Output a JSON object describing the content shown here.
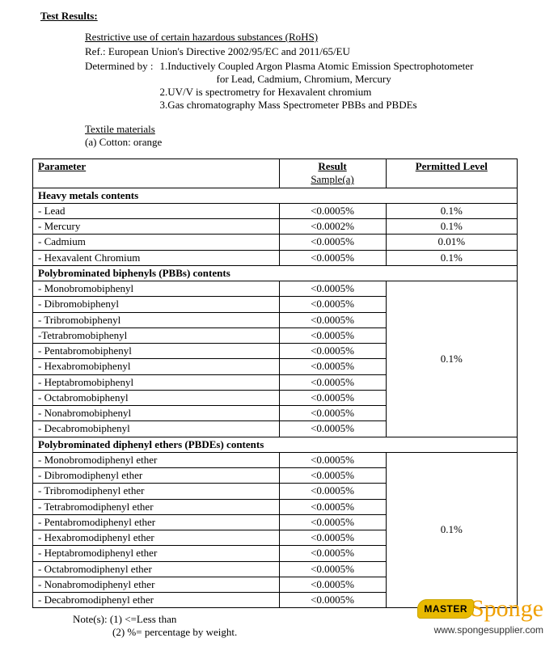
{
  "header": {
    "title": "Test Results:",
    "subtitle": "Restrictive use of certain hazardous substances (RoHS)",
    "ref": "Ref.: European Union's Directive 2002/95/EC and 2011/65/EU",
    "determined_label": "Determined by :",
    "methods": {
      "m1": "1.Inductively Coupled Argon Plasma Atomic Emission Spectrophotometer",
      "m1_sub": "for Lead, Cadmium, Chromium, Mercury",
      "m2": "2.UV/V is spectrometry for Hexavalent chromium",
      "m3": "3.Gas chromatography Mass Spectrometer PBBs and PBDEs"
    },
    "textile": "Textile materials",
    "cotton": "(a)   Cotton: orange"
  },
  "table": {
    "col_parameter": "Parameter",
    "col_result": "Result",
    "col_result_sub": "Sample(a)",
    "col_permitted": "Permitted Level",
    "sections": {
      "heavy": {
        "title": "Heavy metals contents",
        "rows": [
          {
            "p": "- Lead",
            "r": "<0.0005%",
            "l": "0.1%"
          },
          {
            "p": "- Mercury",
            "r": "<0.0002%",
            "l": "0.1%"
          },
          {
            "p": "- Cadmium",
            "r": "<0.0005%",
            "l": "0.01%"
          },
          {
            "p": "- Hexavalent Chromium",
            "r": "<0.0005%",
            "l": "0.1%"
          }
        ]
      },
      "pbb": {
        "title": "Polybrominated biphenyls (PBBs) contents",
        "permitted": "0.1%",
        "rows": [
          {
            "p": "- Monobromobiphenyl",
            "r": "<0.0005%"
          },
          {
            "p": "- Dibromobiphenyl",
            "r": "<0.0005%"
          },
          {
            "p": "- Tribromobiphenyl",
            "r": "<0.0005%"
          },
          {
            "p": "-Tetrabromobiphenyl",
            "r": "<0.0005%"
          },
          {
            "p": "- Pentabromobiphenyl",
            "r": "<0.0005%"
          },
          {
            "p": "- Hexabromobiphenyl",
            "r": "<0.0005%"
          },
          {
            "p": "- Heptabromobiphenyl",
            "r": "<0.0005%"
          },
          {
            "p": "- Octabromobiphenyl",
            "r": "<0.0005%"
          },
          {
            "p": "- Nonabromobiphenyl",
            "r": "<0.0005%"
          },
          {
            "p": "- Decabromobiphenyl",
            "r": "<0.0005%"
          }
        ]
      },
      "pbde": {
        "title": "Polybrominated diphenyl ethers (PBDEs) contents",
        "permitted": "0.1%",
        "rows": [
          {
            "p": "- Monobromodiphenyl ether",
            "r": "<0.0005%"
          },
          {
            "p": "- Dibromodiphenyl ether",
            "r": "<0.0005%"
          },
          {
            "p": "- Tribromodiphenyl ether",
            "r": "<0.0005%"
          },
          {
            "p": "- Tetrabromodiphenyl ether",
            "r": "<0.0005%"
          },
          {
            "p": "- Pentabromodiphenyl ether",
            "r": "<0.0005%"
          },
          {
            "p": "- Hexabromodiphenyl ether",
            "r": "<0.0005%"
          },
          {
            "p": "- Heptabromodiphenyl ether",
            "r": "<0.0005%"
          },
          {
            "p": "- Octabromodiphenyl ether",
            "r": "<0.0005%"
          },
          {
            "p": "- Nonabromodiphenyl ether",
            "r": "<0.0005%"
          },
          {
            "p": "- Decabromodiphenyl ether",
            "r": "<0.0005%"
          }
        ]
      }
    }
  },
  "notes": {
    "n1": "Note(s): (1) <=Less than",
    "n2": "(2) %= percentage by weight."
  },
  "watermark": {
    "master": "MASTER",
    "sponge": "Sponge",
    "url": "www.spongesupplier.com"
  },
  "style": {
    "col_widths": {
      "parameter": "300px",
      "result": "130px",
      "permitted": "160px"
    },
    "border_color": "#000000",
    "bg_color": "#ffffff",
    "font_family": "Times New Roman",
    "font_size_pt": 10
  }
}
